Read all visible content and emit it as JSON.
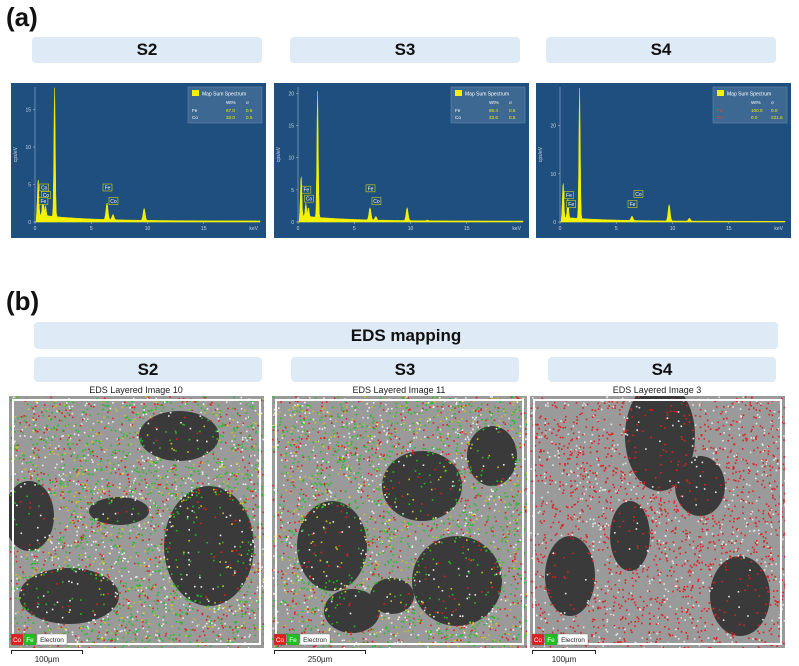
{
  "panel_a_label": "(a)",
  "panel_b_label": "(b)",
  "eds_mapping_title": "EDS mapping",
  "spectra": [
    {
      "sample": "S2",
      "legend_title": "Map Sum Spectrum",
      "col_wt": "Wt%",
      "col_sigma": "σ",
      "rows": [
        {
          "el": "Fe",
          "wt": "67.0",
          "sigma": "0.5"
        },
        {
          "el": "Co",
          "wt": "33.0",
          "sigma": "0.5"
        }
      ],
      "ylabel": "cps/eV",
      "xlabel": "keV",
      "yticks": [
        0,
        5,
        10,
        15
      ],
      "ymax": 18,
      "xticks": [
        0,
        5,
        10,
        15
      ],
      "xmax": 20
    },
    {
      "sample": "S3",
      "legend_title": "Map Sum Spectrum",
      "col_wt": "Wt%",
      "col_sigma": "σ",
      "rows": [
        {
          "el": "Fe",
          "wt": "66.4",
          "sigma": "0.5"
        },
        {
          "el": "Co",
          "wt": "33.6",
          "sigma": "0.5"
        }
      ],
      "ylabel": "cps/eV",
      "xlabel": "keV",
      "yticks": [
        0,
        5,
        10,
        15,
        20
      ],
      "ymax": 21,
      "xticks": [
        0,
        5,
        10,
        15
      ],
      "xmax": 20
    },
    {
      "sample": "S4",
      "legend_title": "Map Sum Spectrum",
      "col_wt": "Wt%",
      "col_sigma": "σ",
      "rows": [
        {
          "el": "Fe",
          "wt": "100.0",
          "sigma": "0.0"
        },
        {
          "el": "Co",
          "wt": "0.0",
          "sigma": "231.6"
        }
      ],
      "ylabel": "cps/eV",
      "xlabel": "keV",
      "yticks": [
        0,
        10,
        20
      ],
      "ymax": 28,
      "xticks": [
        0,
        5,
        10,
        15
      ],
      "xmax": 20
    }
  ],
  "chart_data": [
    {
      "type": "line",
      "title": "S2",
      "xlabel": "keV",
      "ylabel": "cps/eV",
      "xlim": [
        0,
        20
      ],
      "ylim": [
        0,
        18
      ],
      "series": [
        {
          "peaks": [
            [
              0.28,
              5.5
            ],
            [
              0.7,
              3.0
            ],
            [
              0.93,
              2.0
            ],
            [
              1.74,
              18.0
            ],
            [
              6.4,
              2.8
            ],
            [
              6.93,
              1.3
            ],
            [
              7.06,
              0.6
            ],
            [
              9.7,
              2.2
            ],
            [
              11.5,
              0.6
            ]
          ]
        }
      ],
      "annotations": [
        {
          "text": "Co",
          "x": 0.78,
          "y": 4.4
        },
        {
          "text": "Co",
          "x": 0.93,
          "y": 3.4
        },
        {
          "text": "Fe",
          "x": 0.7,
          "y": 2.6
        },
        {
          "text": "Fe",
          "x": 6.4,
          "y": 4.4
        },
        {
          "text": "Co",
          "x": 6.93,
          "y": 2.6
        }
      ]
    },
    {
      "type": "line",
      "title": "S3",
      "xlabel": "keV",
      "ylabel": "cps/eV",
      "xlim": [
        0,
        20
      ],
      "ylim": [
        0,
        21
      ],
      "series": [
        {
          "peaks": [
            [
              0.28,
              7.0
            ],
            [
              0.7,
              2.6
            ],
            [
              0.93,
              2.0
            ],
            [
              1.74,
              20.5
            ],
            [
              6.4,
              2.5
            ],
            [
              6.93,
              1.2
            ],
            [
              7.06,
              0.5
            ],
            [
              9.7,
              2.6
            ],
            [
              11.5,
              0.7
            ]
          ]
        }
      ],
      "annotations": [
        {
          "text": "Fe",
          "x": 0.7,
          "y": 4.8
        },
        {
          "text": "Co",
          "x": 0.93,
          "y": 3.4
        },
        {
          "text": "Fe",
          "x": 6.4,
          "y": 5.0
        },
        {
          "text": "Co",
          "x": 6.93,
          "y": 3.0
        }
      ]
    },
    {
      "type": "line",
      "title": "S4",
      "xlabel": "keV",
      "ylabel": "cps/eV",
      "xlim": [
        0,
        20
      ],
      "ylim": [
        0,
        28
      ],
      "series": [
        {
          "peaks": [
            [
              0.28,
              8.0
            ],
            [
              0.7,
              4.5
            ],
            [
              1.74,
              28.0
            ],
            [
              6.4,
              1.5
            ],
            [
              9.7,
              4.0
            ],
            [
              11.5,
              1.2
            ]
          ]
        }
      ],
      "annotations": [
        {
          "text": "Fe",
          "x": 0.75,
          "y": 5.3
        },
        {
          "text": "Fe",
          "x": 0.95,
          "y": 3.4
        },
        {
          "text": "Co",
          "x": 6.93,
          "y": 5.5
        },
        {
          "text": "Fe",
          "x": 6.4,
          "y": 3.4
        }
      ]
    }
  ],
  "maps": [
    {
      "sample": "S2",
      "title": "EDS Layered Image 10",
      "scale": "100µm",
      "legend": [
        "Co",
        "Fe",
        "Electron"
      ],
      "colors": {
        "co": "#e02020",
        "fe": "#20c020",
        "overlap": "#c8c81e"
      }
    },
    {
      "sample": "S3",
      "title": "EDS Layered Image 11",
      "scale": "250µm",
      "legend": [
        "Co",
        "Fe",
        "Electron"
      ],
      "colors": {
        "co": "#e02020",
        "fe": "#20c020",
        "overlap": "#c8c81e"
      }
    },
    {
      "sample": "S4",
      "title": "EDS Layered Image 3",
      "scale": "100µm",
      "legend": [
        "Co",
        "Fe",
        "Electron"
      ],
      "colors": {
        "co": "#e02020",
        "fe": "#20c020",
        "overlap": "#c8c81e"
      }
    }
  ]
}
